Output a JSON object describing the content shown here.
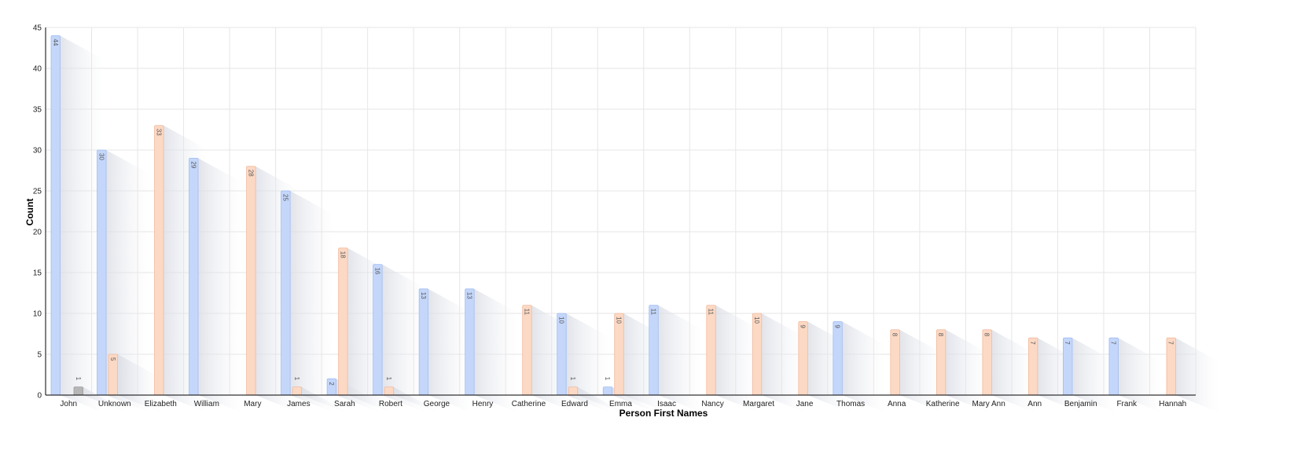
{
  "chart_data": {
    "type": "bar",
    "title": "",
    "xlabel": "Person First Names",
    "ylabel": "Count",
    "ylim": [
      0,
      45
    ],
    "yticks": [
      0,
      5,
      10,
      15,
      20,
      25,
      30,
      35,
      40,
      45
    ],
    "grid": true,
    "legend": "none",
    "categories": [
      "John",
      "Unknown",
      "Elizabeth",
      "William",
      "Mary",
      "James",
      "Sarah",
      "Robert",
      "George",
      "Henry",
      "Catherine",
      "Edward",
      "Emma",
      "Isaac",
      "Nancy",
      "Margaret",
      "Jane",
      "Thomas",
      "Anna",
      "Katherine",
      "Mary Ann",
      "Ann",
      "Benjamin",
      "Frank",
      "Hannah"
    ],
    "series": [
      {
        "color": "#c4d7fb",
        "values": [
          44,
          30,
          0,
          29,
          0,
          25,
          2,
          16,
          13,
          13,
          0,
          10,
          1,
          11,
          0,
          0,
          0,
          9,
          0,
          0,
          0,
          0,
          7,
          7,
          0
        ]
      },
      {
        "color": "#fcd9c4",
        "values": [
          0,
          5,
          33,
          0,
          28,
          1,
          18,
          1,
          0,
          0,
          11,
          1,
          10,
          0,
          11,
          10,
          9,
          0,
          8,
          8,
          8,
          7,
          0,
          0,
          7
        ]
      },
      {
        "color": "#b6b6b6",
        "values": [
          1,
          0,
          0,
          0,
          0,
          0,
          0,
          0,
          0,
          0,
          0,
          0,
          0,
          0,
          0,
          0,
          0,
          0,
          0,
          0,
          0,
          0,
          0,
          0,
          0
        ]
      }
    ]
  }
}
